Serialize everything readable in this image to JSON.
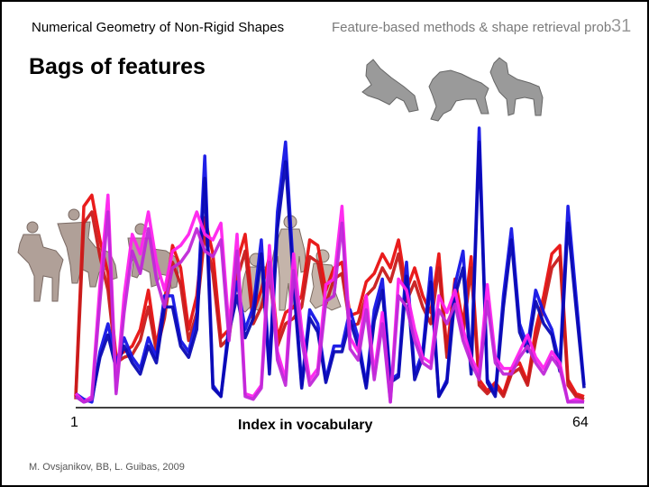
{
  "header": {
    "course": "Numerical Geometry of Non-Rigid Shapes",
    "topic": "Feature-based methods & shape retrieval prob",
    "slide_number": "31"
  },
  "slide_title": "Bags of features",
  "chart_data": {
    "type": "line",
    "xlabel": "Index in vocabulary",
    "x_first_label": "1",
    "x_last_label": "64",
    "ylim": [
      0,
      1
    ],
    "series": [
      {
        "color": "#e81010",
        "values": [
          0.04,
          0.72,
          0.76,
          0.6,
          0.48,
          0.18,
          0.2,
          0.22,
          0.28,
          0.42,
          0.22,
          0.38,
          0.58,
          0.5,
          0.28,
          0.4,
          0.68,
          0.55,
          0.25,
          0.28,
          0.52,
          0.62,
          0.34,
          0.42,
          0.54,
          0.25,
          0.34,
          0.36,
          0.4,
          0.6,
          0.58,
          0.42,
          0.5,
          0.52,
          0.33,
          0.34,
          0.45,
          0.48,
          0.55,
          0.5,
          0.6,
          0.42,
          0.5,
          0.4,
          0.34,
          0.55,
          0.2,
          0.46,
          0.3,
          0.54,
          0.1,
          0.06,
          0.09,
          0.05,
          0.14,
          0.16,
          0.09,
          0.28,
          0.4,
          0.55,
          0.58,
          0.1,
          0.05,
          0.04
        ]
      },
      {
        "color": "#c81b1b",
        "values": [
          0.03,
          0.66,
          0.7,
          0.54,
          0.42,
          0.16,
          0.18,
          0.19,
          0.24,
          0.36,
          0.2,
          0.32,
          0.52,
          0.44,
          0.24,
          0.34,
          0.62,
          0.48,
          0.22,
          0.25,
          0.46,
          0.56,
          0.3,
          0.36,
          0.48,
          0.22,
          0.3,
          0.32,
          0.36,
          0.54,
          0.52,
          0.37,
          0.46,
          0.48,
          0.29,
          0.3,
          0.4,
          0.43,
          0.5,
          0.45,
          0.55,
          0.38,
          0.45,
          0.36,
          0.3,
          0.5,
          0.18,
          0.42,
          0.26,
          0.5,
          0.08,
          0.05,
          0.08,
          0.04,
          0.12,
          0.14,
          0.08,
          0.24,
          0.36,
          0.5,
          0.54,
          0.08,
          0.04,
          0.03
        ]
      },
      {
        "color": "#1414e6",
        "values": [
          0.05,
          0.03,
          0.02,
          0.2,
          0.3,
          0.16,
          0.25,
          0.18,
          0.14,
          0.25,
          0.18,
          0.4,
          0.4,
          0.24,
          0.2,
          0.32,
          0.9,
          0.08,
          0.04,
          0.3,
          0.45,
          0.28,
          0.36,
          0.6,
          0.14,
          0.7,
          0.95,
          0.48,
          0.08,
          0.35,
          0.3,
          0.1,
          0.22,
          0.22,
          0.35,
          0.25,
          0.08,
          0.35,
          0.46,
          0.1,
          0.12,
          0.52,
          0.12,
          0.2,
          0.5,
          0.04,
          0.1,
          0.44,
          0.56,
          0.14,
          1.0,
          0.1,
          0.05,
          0.4,
          0.64,
          0.3,
          0.22,
          0.42,
          0.34,
          0.28,
          0.15,
          0.72,
          0.4,
          0.08
        ]
      },
      {
        "color": "#0a0ab4",
        "values": [
          0.04,
          0.02,
          0.03,
          0.18,
          0.26,
          0.14,
          0.22,
          0.16,
          0.12,
          0.22,
          0.16,
          0.36,
          0.36,
          0.22,
          0.18,
          0.28,
          0.82,
          0.07,
          0.04,
          0.27,
          0.4,
          0.25,
          0.32,
          0.55,
          0.12,
          0.64,
          0.88,
          0.44,
          0.07,
          0.32,
          0.27,
          0.09,
          0.2,
          0.2,
          0.31,
          0.22,
          0.07,
          0.31,
          0.42,
          0.09,
          0.11,
          0.47,
          0.1,
          0.18,
          0.45,
          0.04,
          0.09,
          0.4,
          0.5,
          0.12,
          0.95,
          0.09,
          0.04,
          0.36,
          0.6,
          0.27,
          0.2,
          0.38,
          0.3,
          0.26,
          0.13,
          0.66,
          0.36,
          0.07
        ]
      },
      {
        "color": "#ff22ee",
        "values": [
          0.05,
          0.02,
          0.04,
          0.44,
          0.76,
          0.06,
          0.4,
          0.62,
          0.55,
          0.7,
          0.52,
          0.42,
          0.56,
          0.58,
          0.62,
          0.7,
          0.62,
          0.6,
          0.66,
          0.28,
          0.62,
          0.05,
          0.04,
          0.08,
          0.58,
          0.2,
          0.1,
          0.55,
          0.28,
          0.1,
          0.14,
          0.44,
          0.46,
          0.72,
          0.25,
          0.2,
          0.4,
          0.12,
          0.34,
          0.02,
          0.46,
          0.42,
          0.28,
          0.18,
          0.16,
          0.4,
          0.34,
          0.42,
          0.28,
          0.18,
          0.12,
          0.44,
          0.18,
          0.14,
          0.14,
          0.2,
          0.26,
          0.18,
          0.14,
          0.2,
          0.16,
          0.02,
          0.03,
          0.02
        ]
      },
      {
        "color": "#c028d8",
        "values": [
          0.04,
          0.02,
          0.03,
          0.38,
          0.7,
          0.05,
          0.34,
          0.56,
          0.48,
          0.64,
          0.46,
          0.36,
          0.5,
          0.52,
          0.56,
          0.64,
          0.56,
          0.54,
          0.6,
          0.24,
          0.56,
          0.04,
          0.03,
          0.07,
          0.52,
          0.17,
          0.08,
          0.49,
          0.24,
          0.08,
          0.12,
          0.38,
          0.4,
          0.66,
          0.21,
          0.17,
          0.35,
          0.1,
          0.3,
          0.02,
          0.4,
          0.36,
          0.24,
          0.16,
          0.14,
          0.35,
          0.3,
          0.37,
          0.24,
          0.16,
          0.1,
          0.38,
          0.16,
          0.12,
          0.12,
          0.18,
          0.22,
          0.16,
          0.12,
          0.18,
          0.14,
          0.02,
          0.02,
          0.02
        ]
      }
    ]
  },
  "credit": "M. Ovsjanikov, BB, L. Guibas, 2009",
  "figures": [
    "dog-shapes",
    "centaur-shapes",
    "human-shapes"
  ],
  "colors": {
    "frame": "#000000",
    "background": "#ffffff",
    "topic_text": "#7a7a7a"
  }
}
